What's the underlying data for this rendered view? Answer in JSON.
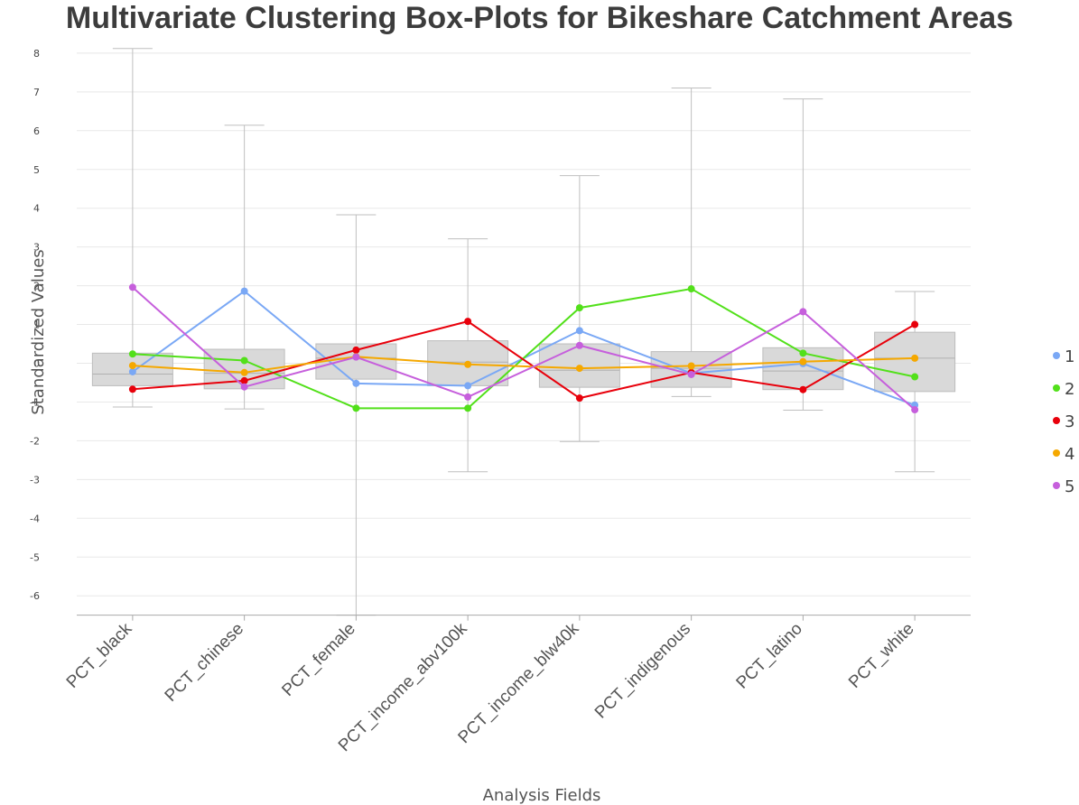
{
  "chart_data": {
    "type": "box",
    "title": "Multivariate Clustering Box-Plots for Bikeshare Catchment Areas",
    "xlabel": "Analysis Fields",
    "ylabel": "Standardized Values",
    "ylim": [
      -6.5,
      8.2
    ],
    "yticks": [
      8,
      7,
      6,
      5,
      4,
      3,
      2,
      1,
      0,
      -1,
      -2,
      -3,
      -4,
      -5,
      -6
    ],
    "grid": true,
    "legend_position": "right",
    "categories": [
      "PCT_black",
      "PCT_chinese",
      "PCT_female",
      "PCT_income_abv100k",
      "PCT_income_blw40k",
      "PCT_indigenous",
      "PCT_latino",
      "PCT_white"
    ],
    "boxes": [
      {
        "min": -1.13,
        "q1": -0.58,
        "median": -0.28,
        "q3": 0.26,
        "max": 8.12
      },
      {
        "min": -1.18,
        "q1": -0.66,
        "median": -0.26,
        "q3": 0.36,
        "max": 6.14
      },
      {
        "min": -6.5,
        "q1": -0.41,
        "median": 0.13,
        "q3": 0.5,
        "max": 3.83
      },
      {
        "min": -2.8,
        "q1": -0.58,
        "median": 0.03,
        "q3": 0.58,
        "max": 3.21
      },
      {
        "min": -2.02,
        "q1": -0.62,
        "median": -0.18,
        "q3": 0.5,
        "max": 4.84
      },
      {
        "min": -0.86,
        "q1": -0.62,
        "median": -0.13,
        "q3": 0.3,
        "max": 7.1
      },
      {
        "min": -1.21,
        "q1": -0.68,
        "median": -0.2,
        "q3": 0.4,
        "max": 6.82
      },
      {
        "min": -2.8,
        "q1": -0.73,
        "median": 0.13,
        "q3": 0.8,
        "max": 1.85
      }
    ],
    "series": [
      {
        "name": "1",
        "color": "#7aa8f5",
        "values": [
          -0.22,
          1.86,
          -0.52,
          -0.58,
          0.84,
          -0.26,
          -0.01,
          -1.08
        ]
      },
      {
        "name": "2",
        "color": "#52e01a",
        "values": [
          0.24,
          0.07,
          -1.16,
          -1.16,
          1.43,
          1.92,
          0.26,
          -0.35
        ]
      },
      {
        "name": "3",
        "color": "#e8000b",
        "values": [
          -0.67,
          -0.45,
          0.34,
          1.08,
          -0.9,
          -0.24,
          -0.68,
          1.0
        ]
      },
      {
        "name": "4",
        "color": "#f5a800",
        "values": [
          -0.06,
          -0.24,
          0.17,
          -0.03,
          -0.13,
          -0.07,
          0.04,
          0.13
        ]
      },
      {
        "name": "5",
        "color": "#c65fdc",
        "values": [
          1.96,
          -0.61,
          0.16,
          -0.87,
          0.46,
          -0.29,
          1.33,
          -1.2
        ]
      }
    ]
  }
}
